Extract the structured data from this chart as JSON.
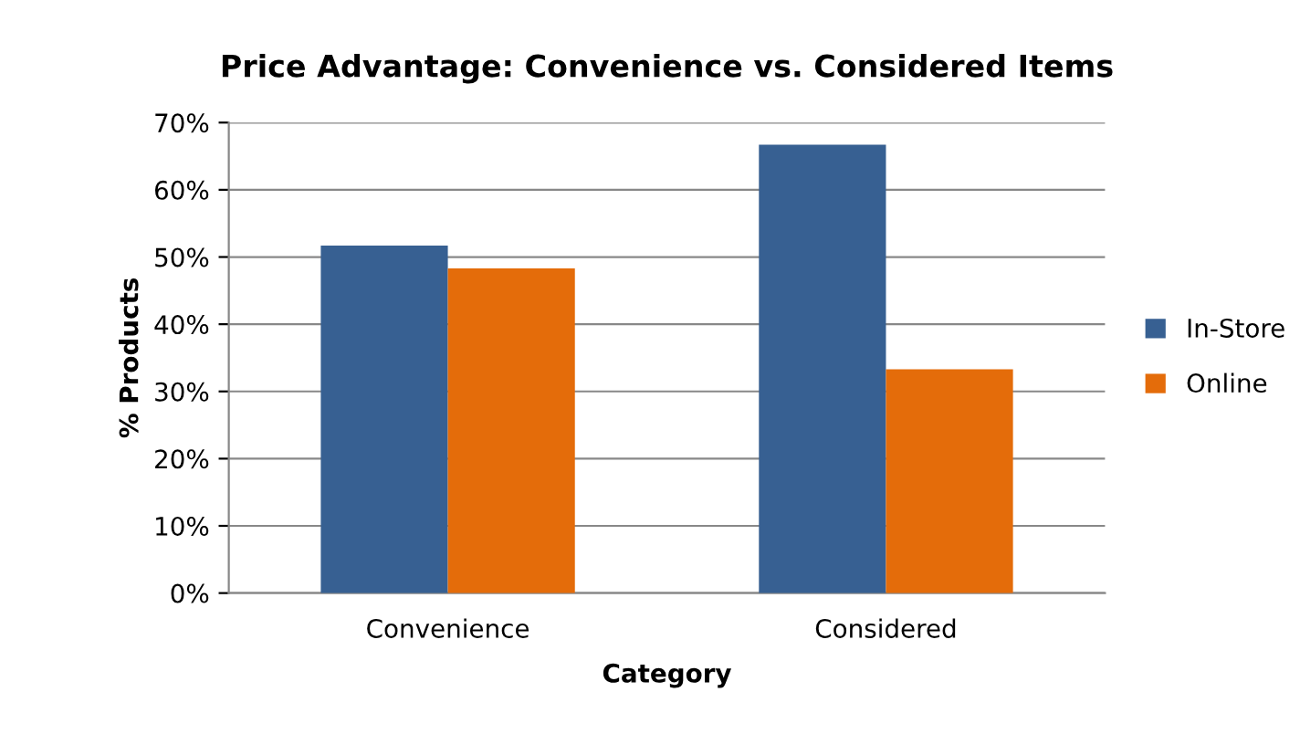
{
  "chart_data": {
    "type": "bar",
    "title": "Price Advantage: Convenience vs. Considered Items",
    "xlabel": "Category",
    "ylabel": "% Products",
    "categories": [
      "Convenience",
      "Considered"
    ],
    "series": [
      {
        "name": "In-Store",
        "color": "#376092",
        "values": [
          51.7,
          66.7
        ]
      },
      {
        "name": "Online",
        "color": "#e46c0a",
        "values": [
          48.3,
          33.3
        ]
      }
    ],
    "ylim": [
      0,
      70
    ],
    "yticks": [
      {
        "value": 0,
        "label": "0%"
      },
      {
        "value": 10,
        "label": "10%"
      },
      {
        "value": 20,
        "label": "20%"
      },
      {
        "value": 30,
        "label": "30%"
      },
      {
        "value": 40,
        "label": "40%"
      },
      {
        "value": 50,
        "label": "50%"
      },
      {
        "value": 60,
        "label": "60%"
      },
      {
        "value": 70,
        "label": "70%"
      }
    ],
    "grid": "y",
    "legend": "right"
  }
}
